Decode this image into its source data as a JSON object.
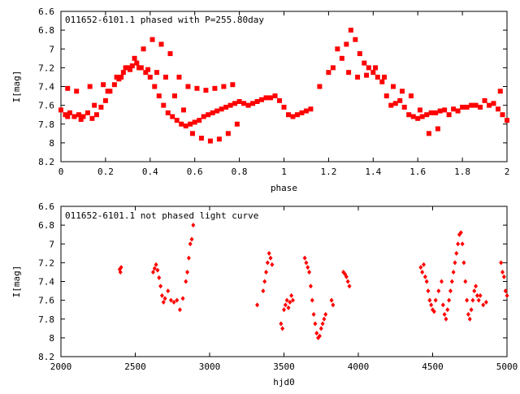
{
  "chart_data": [
    {
      "type": "scatter",
      "title": "011652-6101.1 phased with P=255.80day",
      "xlabel": "phase",
      "ylabel": "I[mag]",
      "xlim": [
        0,
        2
      ],
      "ylim": [
        8.2,
        6.6
      ],
      "y_inverted": true,
      "xticks": [
        "0",
        "0.2",
        "0.4",
        "0.6",
        "0.8",
        "1",
        "1.2",
        "1.4",
        "1.6",
        "1.8",
        "2"
      ],
      "yticks": [
        "6.6",
        "6.8",
        "7",
        "7.2",
        "7.4",
        "7.6",
        "7.8",
        "8",
        "8.2"
      ],
      "marker": "square",
      "color": "#ff0000",
      "series": [
        {
          "x": [
            0.0,
            0.02,
            0.04,
            0.06,
            0.08,
            0.1,
            0.12,
            0.14,
            0.16,
            0.18,
            0.2,
            0.22,
            0.24,
            0.26,
            0.28,
            0.3,
            0.32,
            0.34,
            0.36,
            0.38,
            0.4,
            0.42,
            0.44,
            0.46,
            0.48,
            0.5,
            0.52,
            0.54,
            0.56,
            0.58,
            0.6,
            0.62,
            0.64,
            0.66,
            0.68,
            0.7,
            0.72,
            0.74,
            0.76,
            0.78,
            0.8,
            0.82,
            0.84,
            0.86,
            0.88,
            0.9,
            0.92,
            0.94,
            0.96,
            0.98,
            1.0,
            1.02,
            1.04,
            1.06,
            1.08,
            1.1,
            1.12,
            0.03,
            0.07,
            0.13,
            0.19,
            0.25,
            0.29,
            0.33,
            0.37,
            0.41,
            0.45,
            0.49,
            0.53,
            0.57,
            0.61,
            0.65,
            0.69,
            0.73,
            0.77,
            0.03,
            0.09,
            0.15,
            0.21,
            0.27,
            0.31,
            0.35,
            0.39,
            0.43,
            0.47,
            0.51,
            0.55,
            0.59,
            0.63,
            0.67,
            0.71,
            0.75,
            0.79
          ],
          "y": [
            7.65,
            7.7,
            7.68,
            7.72,
            7.7,
            7.72,
            7.68,
            7.74,
            7.7,
            7.62,
            7.55,
            7.45,
            7.38,
            7.32,
            7.25,
            7.2,
            7.18,
            7.15,
            7.2,
            7.25,
            7.3,
            7.4,
            7.5,
            7.6,
            7.68,
            7.72,
            7.76,
            7.8,
            7.82,
            7.8,
            7.78,
            7.76,
            7.72,
            7.7,
            7.68,
            7.66,
            7.64,
            7.62,
            7.6,
            7.58,
            7.56,
            7.58,
            7.6,
            7.58,
            7.56,
            7.54,
            7.52,
            7.52,
            7.5,
            7.55,
            7.62,
            7.7,
            7.72,
            7.7,
            7.68,
            7.66,
            7.64,
            7.42,
            7.45,
            7.4,
            7.38,
            7.3,
            7.2,
            7.1,
            7.0,
            6.9,
            6.95,
            7.05,
            7.3,
            7.4,
            7.42,
            7.44,
            7.42,
            7.4,
            7.38,
            7.72,
            7.75,
            7.6,
            7.45,
            7.3,
            7.22,
            7.2,
            7.22,
            7.25,
            7.3,
            7.5,
            7.65,
            7.9,
            7.95,
            7.98,
            7.96,
            7.9,
            7.8
          ]
        },
        {
          "x": [
            1.16,
            1.2,
            1.24,
            1.28,
            1.3,
            1.32,
            1.34,
            1.36,
            1.38,
            1.4,
            1.42,
            1.44,
            1.46,
            1.48,
            1.5,
            1.52,
            1.54,
            1.56,
            1.58,
            1.6,
            1.62,
            1.64,
            1.66,
            1.68,
            1.7,
            1.72,
            1.76,
            1.8,
            1.84,
            1.88,
            1.92,
            1.94,
            1.96,
            1.98,
            2.0,
            1.22,
            1.26,
            1.29,
            1.33,
            1.37,
            1.41,
            1.45,
            1.49,
            1.53,
            1.57,
            1.61,
            1.65,
            1.69,
            1.74,
            1.78,
            1.82,
            1.86,
            1.9,
            1.97
          ],
          "y": [
            7.4,
            7.25,
            7.0,
            6.95,
            6.8,
            6.9,
            7.05,
            7.15,
            7.2,
            7.25,
            7.3,
            7.35,
            7.5,
            7.6,
            7.58,
            7.55,
            7.62,
            7.7,
            7.72,
            7.74,
            7.72,
            7.7,
            7.68,
            7.68,
            7.66,
            7.65,
            7.64,
            7.62,
            7.6,
            7.62,
            7.6,
            7.58,
            7.64,
            7.7,
            7.76,
            7.2,
            7.1,
            7.25,
            7.3,
            7.28,
            7.2,
            7.3,
            7.4,
            7.45,
            7.5,
            7.65,
            7.9,
            7.85,
            7.7,
            7.66,
            7.62,
            7.6,
            7.55,
            7.45
          ]
        }
      ]
    },
    {
      "type": "scatter",
      "title": "011652-6101.1 not phased light curve",
      "xlabel": "hjd0",
      "ylabel": "I[mag]",
      "xlim": [
        2000,
        5000
      ],
      "ylim": [
        8.2,
        6.6
      ],
      "y_inverted": true,
      "xticks": [
        "2000",
        "2500",
        "3000",
        "3500",
        "4000",
        "4500",
        "5000"
      ],
      "yticks": [
        "6.6",
        "6.8",
        "7",
        "7.2",
        "7.4",
        "7.6",
        "7.8",
        "8",
        "8.2"
      ],
      "marker": "diamond",
      "color": "#ff0000",
      "series": [
        {
          "x": [
            2395,
            2400,
            2405,
            2620,
            2630,
            2640,
            2650,
            2660,
            2670,
            2680,
            2690,
            2700,
            2720,
            2740,
            2760,
            2780,
            2800,
            2820,
            2840,
            2850,
            2860,
            2870,
            2880,
            2890,
            3320,
            3360,
            3370,
            3380,
            3390,
            3400,
            3410,
            3420,
            3480,
            3490,
            3500,
            3510,
            3520,
            3530,
            3540,
            3550,
            3560,
            3640,
            3650,
            3660,
            3670,
            3680,
            3690,
            3700,
            3710,
            3720,
            3730,
            3740,
            3750,
            3760,
            3770,
            3780,
            3820,
            3830,
            3900,
            3910,
            3920,
            3930,
            3940
          ],
          "y": [
            7.27,
            7.3,
            7.25,
            7.3,
            7.26,
            7.22,
            7.28,
            7.36,
            7.45,
            7.55,
            7.62,
            7.58,
            7.5,
            7.6,
            7.62,
            7.6,
            7.7,
            7.58,
            7.4,
            7.3,
            7.15,
            7.0,
            6.95,
            6.8,
            7.65,
            7.5,
            7.4,
            7.3,
            7.2,
            7.1,
            7.15,
            7.22,
            7.85,
            7.9,
            7.7,
            7.65,
            7.6,
            7.68,
            7.62,
            7.55,
            7.6,
            7.15,
            7.2,
            7.25,
            7.3,
            7.45,
            7.6,
            7.75,
            7.85,
            7.95,
            8.0,
            7.98,
            7.9,
            7.85,
            7.8,
            7.75,
            7.6,
            7.65,
            7.3,
            7.32,
            7.35,
            7.4,
            7.45
          ]
        },
        {
          "x": [
            4420,
            4430,
            4440,
            4450,
            4460,
            4470,
            4480,
            4490,
            4500,
            4510,
            4520,
            4540,
            4560,
            4570,
            4580,
            4590,
            4600,
            4610,
            4620,
            4630,
            4640,
            4650,
            4660,
            4670,
            4680,
            4690,
            4700,
            4710,
            4720,
            4730,
            4740,
            4750,
            4760,
            4770,
            4780,
            4790,
            4800,
            4810,
            4820,
            4840,
            4860,
            4960,
            4970,
            4980,
            4990,
            5000
          ],
          "y": [
            7.25,
            7.3,
            7.22,
            7.35,
            7.4,
            7.5,
            7.6,
            7.65,
            7.7,
            7.72,
            7.6,
            7.5,
            7.4,
            7.65,
            7.75,
            7.8,
            7.7,
            7.6,
            7.5,
            7.4,
            7.3,
            7.2,
            7.1,
            7.0,
            6.9,
            6.88,
            7.0,
            7.2,
            7.4,
            7.6,
            7.75,
            7.8,
            7.7,
            7.6,
            7.5,
            7.45,
            7.55,
            7.6,
            7.55,
            7.65,
            7.62,
            7.2,
            7.3,
            7.35,
            7.5,
            7.55
          ]
        }
      ]
    }
  ]
}
